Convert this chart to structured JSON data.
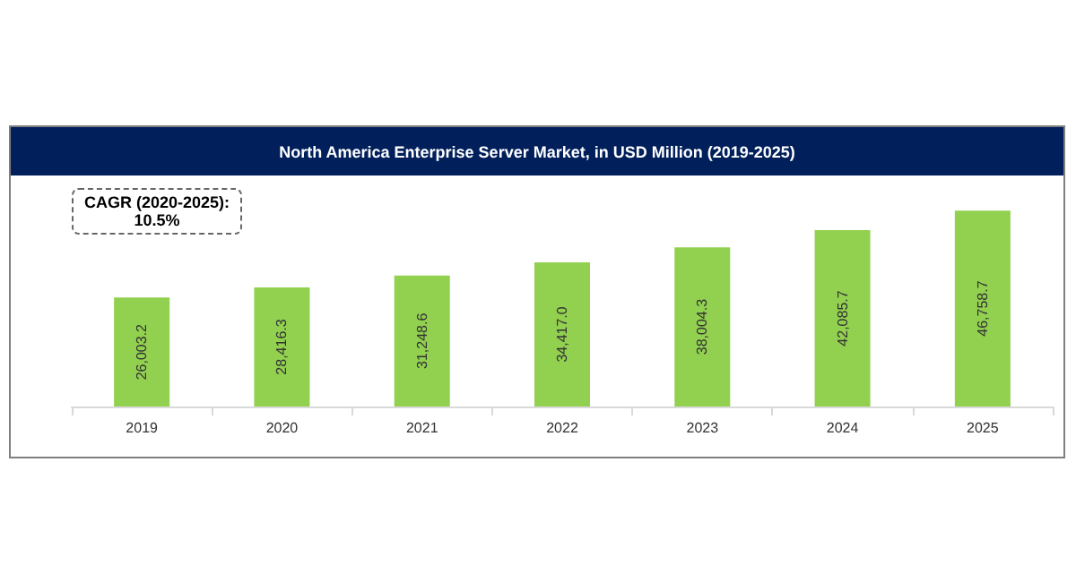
{
  "chart_data": {
    "type": "bar",
    "title": "North America Enterprise Server Market, in USD Million (2019-2025)",
    "categories": [
      "2019",
      "2020",
      "2021",
      "2022",
      "2023",
      "2024",
      "2025"
    ],
    "values": [
      26003.2,
      28416.3,
      31248.6,
      34417.0,
      38004.3,
      42085.7,
      46758.7
    ],
    "value_labels": [
      "26,003.2",
      "28,416.3",
      "31,248.6",
      "34,417.0",
      "38,004.3",
      "42,085.7",
      "46,758.7"
    ],
    "color": "#92d050",
    "annotations": [
      "CAGR (2020-2025):\n10.5%"
    ]
  }
}
